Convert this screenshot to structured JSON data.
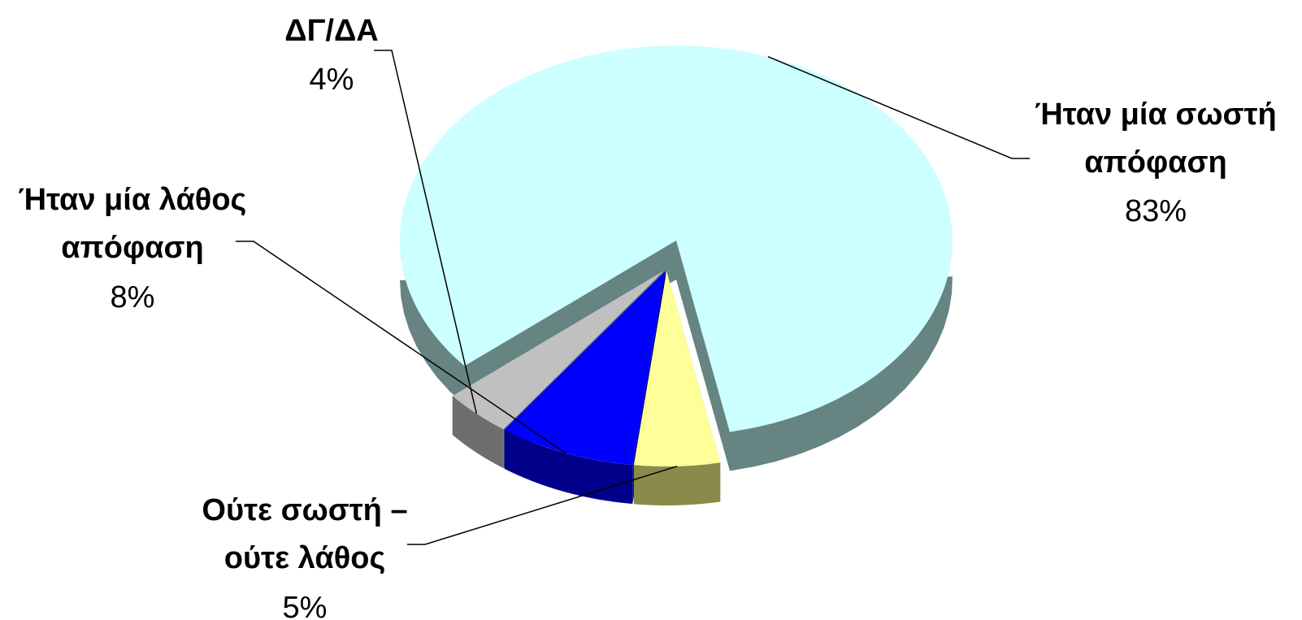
{
  "chart_data": {
    "type": "pie",
    "style": "3d-exploded",
    "slices": [
      {
        "name_lines": [
          "Ήταν μία σωστή",
          "απόφαση"
        ],
        "percent_label": "83%",
        "value": 83,
        "color": "#ccffff",
        "side_color": "#658482"
      },
      {
        "name_lines": [
          "Ούτε σωστή –",
          "ούτε λάθος"
        ],
        "percent_label": "5%",
        "value": 5,
        "color": "#ffff99",
        "side_color": "#8a8a4a"
      },
      {
        "name_lines": [
          "Ήταν μία λάθος",
          "απόφαση"
        ],
        "percent_label": "8%",
        "value": 8,
        "color": "#0000ff",
        "side_color": "#00008b"
      },
      {
        "name_lines": [
          "ΔΓ/ΔΑ"
        ],
        "percent_label": "4%",
        "value": 4,
        "color": "#c0c0c0",
        "side_color": "#6e6e6e"
      }
    ]
  }
}
